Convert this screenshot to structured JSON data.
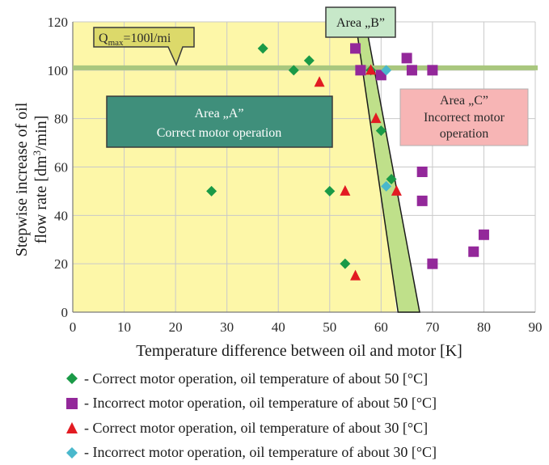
{
  "chart_data": {
    "type": "scatter",
    "xlabel": "Temperature difference between oil and motor  [K]",
    "ylabel_line1": "Stepwise increase of oil",
    "ylabel_line2_prefix": "flow rate [dm",
    "ylabel_line2_sup": "3",
    "ylabel_line2_suffix": "/min]",
    "xlim": [
      0,
      90
    ],
    "ylim": [
      0,
      120
    ],
    "xticks": [
      "0",
      "10",
      "20",
      "30",
      "40",
      "50",
      "60",
      "70",
      "80",
      "90"
    ],
    "yticks": [
      "0",
      "20",
      "40",
      "60",
      "80",
      "100",
      "120"
    ],
    "grid": true,
    "reference_line": {
      "y": 101,
      "color": "#a9c77e",
      "label_main": "Q",
      "label_sub": "max",
      "label_rest": "=100l/mi"
    },
    "areas": [
      {
        "line1": "Area „A”",
        "line2": "Correct motor operation",
        "fill": "#3f8f7b",
        "text_color": "#ffffff"
      },
      {
        "line1": "Area „B”",
        "line2": "",
        "fill": "#c7e8c9",
        "text_color": "#1a1a1a"
      },
      {
        "line1": "Area „C”",
        "line2": "Incorrect motor",
        "line3": "operation",
        "fill": "#f7b5b5",
        "text_color": "#2a2a2a"
      }
    ],
    "colors": {
      "area_a_bg": "#fdf7a8",
      "band": "#bfe08a",
      "green": "#1a9a47",
      "purple": "#93289a",
      "red": "#e21b22",
      "cyan": "#4ab8cc"
    },
    "series": [
      {
        "name": "- Correct motor operation, oil temperature of about 50 [°C]",
        "marker": "diamond",
        "color": "#1a9a47",
        "points": [
          [
            37,
            109
          ],
          [
            46,
            104
          ],
          [
            43,
            100
          ],
          [
            27,
            50
          ],
          [
            50,
            50
          ],
          [
            53,
            20
          ],
          [
            60,
            75
          ],
          [
            62,
            55
          ],
          [
            58,
            100
          ]
        ]
      },
      {
        "name": "- Incorrect motor operation, oil temperature of about 50 [°C]",
        "marker": "square",
        "color": "#93289a",
        "points": [
          [
            55,
            109
          ],
          [
            56,
            100
          ],
          [
            60,
            98
          ],
          [
            65,
            105
          ],
          [
            66,
            100
          ],
          [
            70,
            100
          ],
          [
            68,
            58
          ],
          [
            68,
            46
          ],
          [
            70,
            20
          ],
          [
            78,
            25
          ],
          [
            80,
            32
          ]
        ]
      },
      {
        "name": "- Correct motor operation, oil temperature of about 30 [°C]",
        "marker": "triangle",
        "color": "#e21b22",
        "points": [
          [
            48,
            95
          ],
          [
            58,
            100
          ],
          [
            59,
            80
          ],
          [
            53,
            50
          ],
          [
            63,
            50
          ],
          [
            55,
            15
          ]
        ]
      },
      {
        "name": "- Incorrect motor operation, oil temperature of about 30 [°C]",
        "marker": "diamond",
        "color": "#4ab8cc",
        "points": [
          [
            61,
            52
          ],
          [
            61,
            100
          ]
        ]
      }
    ]
  }
}
